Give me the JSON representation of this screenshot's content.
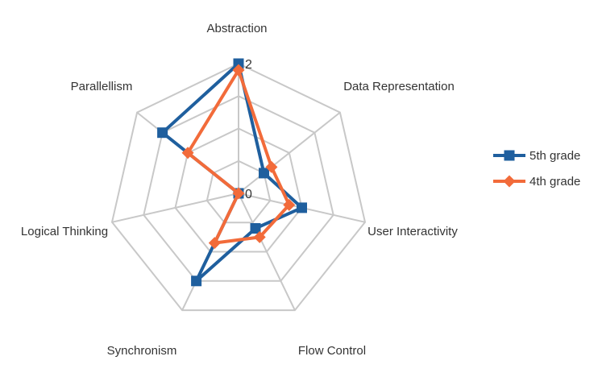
{
  "chart_data": {
    "type": "radar",
    "categories": [
      "Abstraction",
      "Data Representation",
      "User Interactivity",
      "Flow Control",
      "Synchronism",
      "Logical Thinking",
      "Parallellism"
    ],
    "rlim": [
      0,
      2
    ],
    "tick_labels": [
      "0",
      "2"
    ],
    "grid": true,
    "legend_position": "right",
    "series": [
      {
        "name": "5th grade",
        "color": "#1f5f9e",
        "marker": "square",
        "values": [
          2.0,
          0.5,
          1.0,
          0.6,
          1.5,
          0.0,
          1.5
        ]
      },
      {
        "name": "4th grade",
        "color": "#f26b3a",
        "marker": "diamond",
        "values": [
          1.9,
          0.65,
          0.8,
          0.75,
          0.85,
          0.0,
          1.0
        ]
      }
    ]
  }
}
